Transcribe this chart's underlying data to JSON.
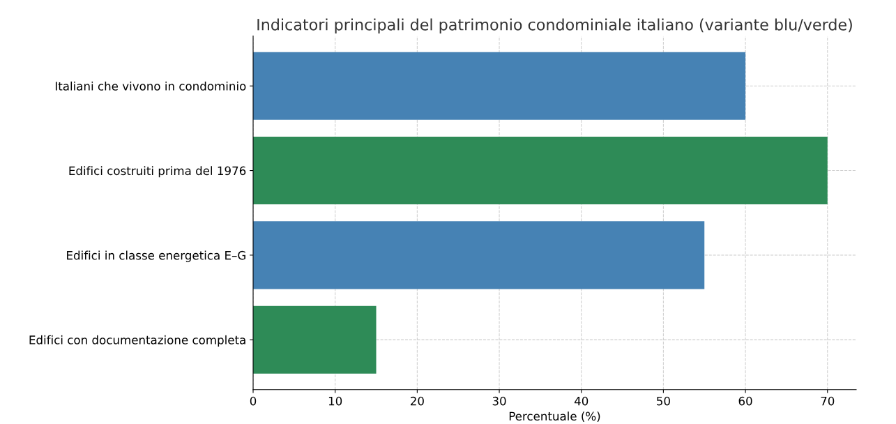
{
  "chart_data": {
    "type": "bar",
    "orientation": "horizontal",
    "title": "Indicatori principali del patrimonio condominiale italiano (variante blu/verde)",
    "xlabel": "Percentuale (%)",
    "categories": [
      "Italiani che vivono in condominio",
      "Edifici costruiti prima del 1976",
      "Edifici in classe energetica E–G",
      "Edifici con documentazione completa"
    ],
    "values": [
      60,
      70,
      55,
      15
    ],
    "colors": [
      "#4682b4",
      "#2e8b57",
      "#4682b4",
      "#2e8b57"
    ],
    "xlim": [
      0,
      73.5
    ],
    "xticks": [
      0,
      10,
      20,
      30,
      40,
      50,
      60,
      70
    ],
    "grid": true
  }
}
